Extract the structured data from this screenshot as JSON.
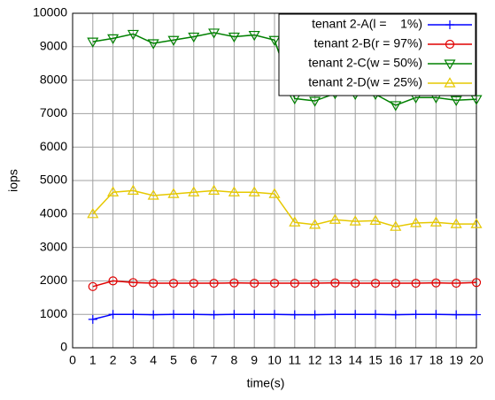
{
  "chart_data": {
    "type": "line",
    "x_label": "time(s)",
    "y_label": "iops",
    "x": [
      1,
      2,
      3,
      4,
      5,
      6,
      7,
      8,
      9,
      10,
      11,
      12,
      13,
      14,
      15,
      16,
      17,
      18,
      19,
      20
    ],
    "series": [
      {
        "name": "tenant 2-A(l =    1%)",
        "color": "#0000ff",
        "marker": "plus",
        "values": [
          850,
          1000,
          1000,
          990,
          1000,
          1000,
          990,
          1000,
          1000,
          1000,
          990,
          990,
          1000,
          1000,
          1000,
          990,
          1000,
          1000,
          990,
          990
        ]
      },
      {
        "name": "tenant 2-B(r = 97%)",
        "color": "#e00000",
        "marker": "circle",
        "values": [
          1830,
          2000,
          1950,
          1930,
          1930,
          1930,
          1930,
          1940,
          1930,
          1930,
          1930,
          1930,
          1940,
          1930,
          1930,
          1930,
          1930,
          1940,
          1930,
          1950
        ]
      },
      {
        "name": "tenant 2-C(w = 50%)",
        "color": "#008000",
        "marker": "triangle-down",
        "values": [
          9150,
          9250,
          9380,
          9100,
          9200,
          9300,
          9420,
          9300,
          9350,
          9200,
          7450,
          7380,
          7600,
          7580,
          7580,
          7250,
          7480,
          7480,
          7400,
          7430
        ]
      },
      {
        "name": "tenant 2-D(w = 25%)",
        "color": "#e6c800",
        "marker": "triangle-up",
        "values": [
          4000,
          4650,
          4700,
          4550,
          4600,
          4650,
          4700,
          4650,
          4650,
          4600,
          3750,
          3680,
          3830,
          3780,
          3800,
          3620,
          3730,
          3750,
          3700,
          3700
        ]
      }
    ],
    "xlim": [
      0,
      20
    ],
    "xticks": [
      0,
      1,
      2,
      3,
      4,
      5,
      6,
      7,
      8,
      9,
      10,
      11,
      12,
      13,
      14,
      15,
      16,
      17,
      18,
      19,
      20
    ],
    "ylim": [
      0,
      10000
    ],
    "yticks": [
      0,
      1000,
      2000,
      3000,
      4000,
      5000,
      6000,
      7000,
      8000,
      9000,
      10000
    ],
    "grid": true,
    "legend": "top-right"
  }
}
